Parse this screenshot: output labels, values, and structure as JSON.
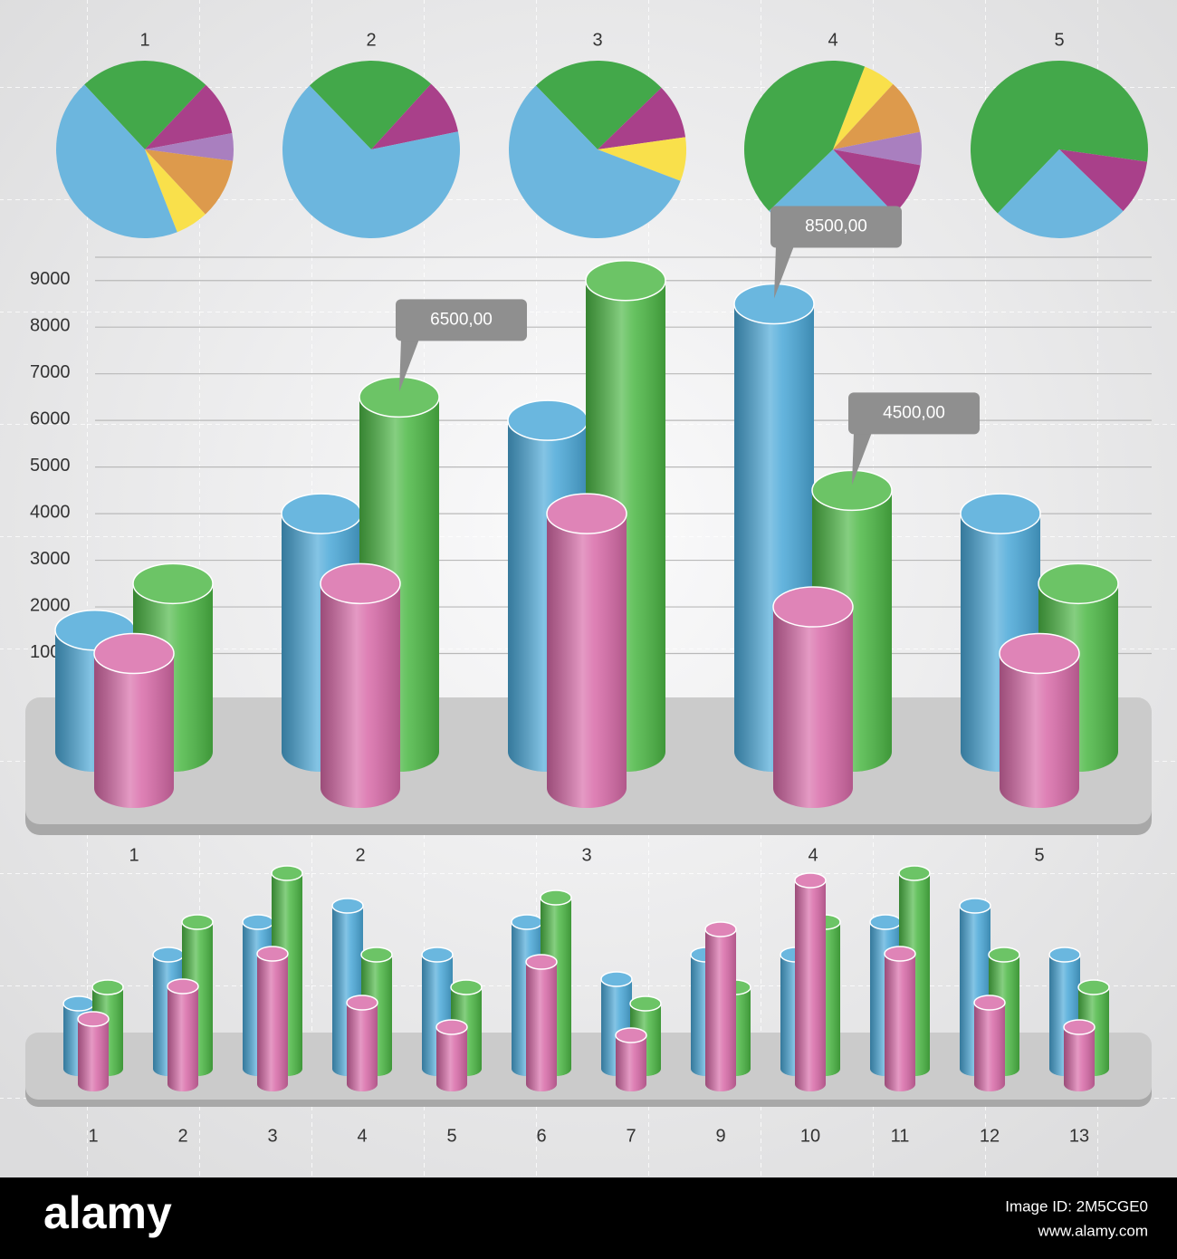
{
  "chart_data": [
    {
      "type": "pie",
      "title": "1",
      "values": [
        24,
        10,
        5,
        11,
        6,
        44
      ],
      "colors": [
        "#43a84a",
        "#a9408a",
        "#a97fbf",
        "#dd9a4c",
        "#f9e04b",
        "#6cb6de"
      ],
      "startangle": -43
    },
    {
      "type": "pie",
      "title": "2",
      "values": [
        24,
        10,
        66
      ],
      "colors": [
        "#43a84a",
        "#a9408a",
        "#6cb6de"
      ],
      "startangle": -44
    },
    {
      "type": "pie",
      "title": "3",
      "values": [
        25,
        10,
        8,
        57
      ],
      "colors": [
        "#43a84a",
        "#a9408a",
        "#f9e04b",
        "#6cb6de"
      ],
      "startangle": -44
    },
    {
      "type": "pie",
      "title": "4",
      "values": [
        6,
        10,
        6,
        10,
        25,
        43
      ],
      "colors": [
        "#f9e04b",
        "#dd9a4c",
        "#a97fbf",
        "#a9408a",
        "#6cb6de",
        "#43a84a"
      ],
      "startangle": 21
    },
    {
      "type": "pie",
      "title": "5",
      "values": [
        65,
        10,
        25
      ],
      "colors": [
        "#43a84a",
        "#a9408a",
        "#6cb6de"
      ],
      "startangle": -136
    },
    {
      "type": "bar",
      "style": "cylinder",
      "categories": [
        "1",
        "2",
        "3",
        "4",
        "5"
      ],
      "series": [
        {
          "color": "#4aa8d8",
          "values": [
            1500,
            4000,
            6000,
            8500,
            4000
          ],
          "value_labels": [
            null,
            null,
            null,
            "8500,00",
            null
          ]
        },
        {
          "color": "#4cb845",
          "values": [
            2500,
            6500,
            9000,
            4500,
            2500
          ],
          "value_labels": [
            null,
            "6500,00",
            null,
            "4500,00",
            null
          ]
        },
        {
          "color": "#d86aa8",
          "values": [
            1000,
            2500,
            4000,
            2000,
            1000
          ]
        }
      ],
      "ylim": [
        0,
        9500
      ],
      "yticks": [
        1000,
        2000,
        3000,
        4000,
        5000,
        6000,
        7000,
        8000,
        9000
      ],
      "grid": true
    },
    {
      "type": "bar",
      "style": "cylinder",
      "categories": [
        "1",
        "2",
        "3",
        "4",
        "5",
        "6",
        "7",
        "9",
        "10",
        "11",
        "12",
        "13"
      ],
      "series": [
        {
          "color": "#4aa8d8",
          "values": [
            8,
            14,
            18,
            20,
            14,
            18,
            11,
            14,
            14,
            18,
            20,
            14
          ]
        },
        {
          "color": "#4cb845",
          "values": [
            10,
            18,
            24,
            14,
            10,
            21,
            8,
            10,
            18,
            24,
            14,
            10
          ]
        },
        {
          "color": "#d86aa8",
          "values": [
            8,
            12,
            16,
            10,
            7,
            15,
            6,
            19,
            25,
            16,
            10,
            7
          ]
        }
      ],
      "ylim": [
        0,
        25
      ],
      "grid": false
    }
  ],
  "footer": {
    "logo": "alamy",
    "image_id": "Image ID: 2M5CGE0",
    "url": "www.alamy.com"
  }
}
